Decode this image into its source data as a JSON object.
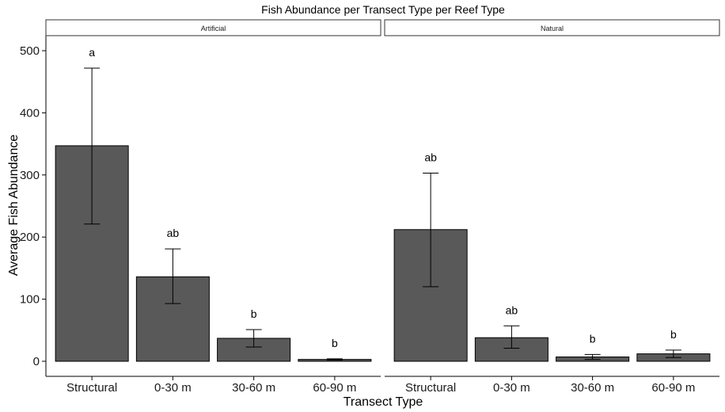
{
  "chart_data": {
    "type": "bar",
    "title": "Fish Abundance per Transect Type per Reef Type",
    "xlabel": "Transect Type",
    "ylabel": "Average Fish Abundance",
    "ylim": [
      0,
      525
    ],
    "yticks": [
      0,
      100,
      200,
      300,
      400,
      500
    ],
    "grid": false,
    "legend": "none",
    "colors": {
      "bar_fill": "#595959",
      "bar_stroke": "#000000",
      "axis": "#000000"
    },
    "categories": [
      "Structural",
      "0-30 m",
      "30-60 m",
      "60-90 m"
    ],
    "panels": [
      {
        "name": "Artificial",
        "values": [
          347,
          136,
          37,
          3
        ],
        "err_low": [
          221,
          93,
          23,
          2
        ],
        "err_high": [
          472,
          181,
          51,
          4
        ],
        "labels": [
          "a",
          "ab",
          "b",
          "b"
        ]
      },
      {
        "name": "Natural",
        "values": [
          212,
          38,
          7,
          12
        ],
        "err_low": [
          120,
          21,
          3,
          6
        ],
        "err_high": [
          303,
          57,
          11,
          18
        ],
        "labels": [
          "ab",
          "ab",
          "b",
          "b"
        ]
      }
    ]
  }
}
